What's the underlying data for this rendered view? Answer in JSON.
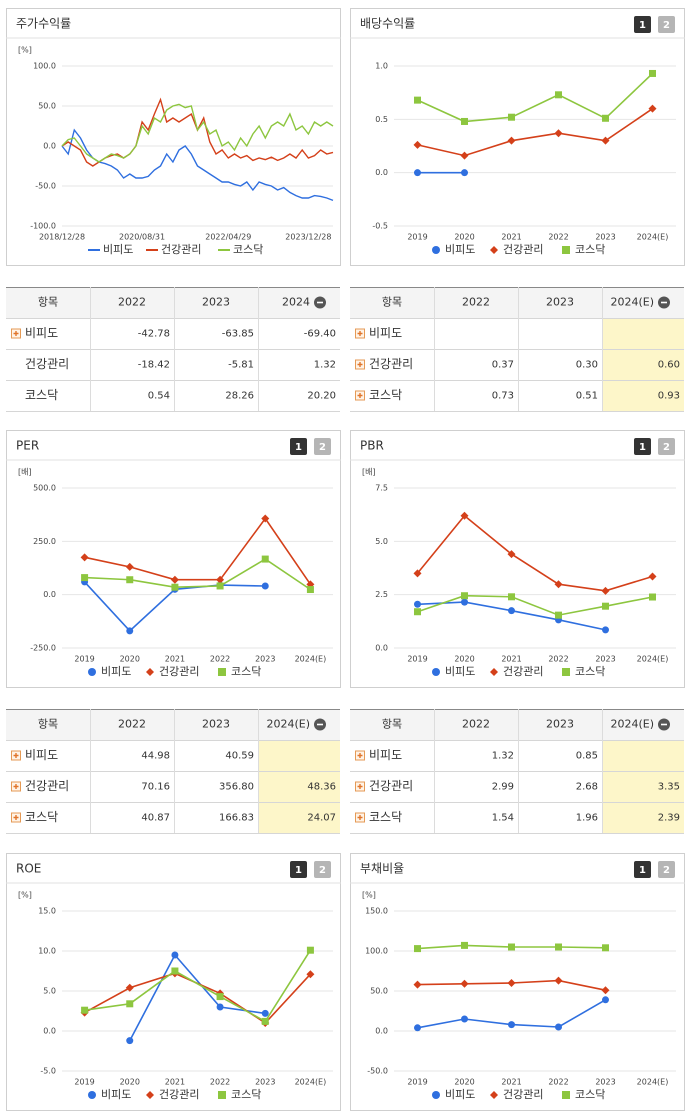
{
  "chart_data": [
    {
      "type": "line",
      "title": "주가수익률",
      "unit": "[%]",
      "markers": false,
      "categories": [
        "2018/12/28",
        null,
        null,
        null,
        null,
        null,
        null,
        null,
        null,
        null,
        null,
        null,
        null,
        "2020/08/31",
        null,
        null,
        null,
        null,
        null,
        null,
        null,
        null,
        null,
        null,
        null,
        null,
        null,
        "2022/04/29",
        null,
        null,
        null,
        null,
        null,
        null,
        null,
        null,
        null,
        null,
        null,
        null,
        "2023/12/28",
        null,
        null,
        null,
        null
      ],
      "ylim": [
        -100,
        100
      ],
      "yticks": [
        {
          "value": -100,
          "label": "-100.0"
        },
        {
          "value": -50,
          "label": "-50.0"
        },
        {
          "value": 0,
          "label": "0.0"
        },
        {
          "value": 50,
          "label": "50.0"
        },
        {
          "value": 100,
          "label": "100.0"
        }
      ],
      "grid": true,
      "series": [
        {
          "name": "비피도",
          "color": "#2f6fdf",
          "values": [
            0,
            -10,
            20,
            10,
            -5,
            -15,
            -20,
            -22,
            -25,
            -30,
            -40,
            -35,
            -40,
            -40,
            -38,
            -30,
            -25,
            -10,
            -20,
            -5,
            0,
            -10,
            -25,
            -30,
            -35,
            -40,
            -45,
            -45,
            -48,
            -50,
            -45,
            -55,
            -45,
            -48,
            -50,
            -55,
            -52,
            -58,
            -62,
            -65,
            -65,
            -62,
            -63,
            -65,
            -68
          ]
        },
        {
          "name": "건강관리",
          "color": "#d4401a",
          "values": [
            0,
            5,
            0,
            -5,
            -20,
            -25,
            -20,
            -15,
            -12,
            -10,
            -15,
            -10,
            0,
            30,
            20,
            40,
            58,
            30,
            35,
            30,
            35,
            40,
            20,
            35,
            5,
            -10,
            -5,
            -15,
            -10,
            -15,
            -12,
            -18,
            -15,
            -17,
            -14,
            -18,
            -15,
            -10,
            -15,
            -5,
            -15,
            -12,
            -5,
            -10,
            -8
          ]
        },
        {
          "name": "코스닥",
          "color": "#8dc63f",
          "values": [
            0,
            8,
            10,
            0,
            -10,
            -15,
            -20,
            -15,
            -10,
            -12,
            -15,
            -10,
            0,
            25,
            15,
            35,
            30,
            45,
            50,
            52,
            48,
            50,
            20,
            30,
            15,
            20,
            0,
            5,
            -5,
            10,
            0,
            15,
            25,
            10,
            25,
            30,
            25,
            40,
            20,
            25,
            15,
            30,
            25,
            30,
            25
          ]
        }
      ]
    },
    {
      "type": "line",
      "title": "배당수익률",
      "buttons": [
        "1",
        "2"
      ],
      "markers": true,
      "categories": [
        "2019",
        "2020",
        "2021",
        "2022",
        "2023",
        "2024(E)"
      ],
      "ylim": [
        -0.5,
        1.0
      ],
      "yticks": [
        -0.5,
        {
          "value": 0,
          "label": "0.0"
        },
        0.5,
        {
          "value": 1.0,
          "label": "1.0"
        }
      ],
      "grid": true,
      "series": [
        {
          "name": "비피도",
          "color": "#2f6fdf",
          "values": [
            0.0,
            0.0,
            null,
            null,
            null,
            null
          ]
        },
        {
          "name": "건강관리",
          "color": "#d4401a",
          "values": [
            0.26,
            0.16,
            0.3,
            0.37,
            0.3,
            0.6
          ]
        },
        {
          "name": "코스닥",
          "color": "#8dc63f",
          "values": [
            0.68,
            0.48,
            0.52,
            0.73,
            0.51,
            0.93
          ]
        }
      ]
    },
    {
      "type": "line",
      "title": "PER",
      "unit": "[배]",
      "buttons": [
        "1",
        "2"
      ],
      "markers": true,
      "categories": [
        "2019",
        "2020",
        "2021",
        "2022",
        "2023",
        "2024(E)"
      ],
      "ylim": [
        -250,
        500
      ],
      "yticks": [
        {
          "value": -250,
          "label": "-250.0"
        },
        {
          "value": 0,
          "label": "0.0"
        },
        {
          "value": 250,
          "label": "250.0"
        },
        {
          "value": 500,
          "label": "500.0"
        }
      ],
      "grid": true,
      "series": [
        {
          "name": "비피도",
          "color": "#2f6fdf",
          "values": [
            60,
            -170,
            25,
            44.98,
            40.59,
            null
          ]
        },
        {
          "name": "건강관리",
          "color": "#d4401a",
          "values": [
            175,
            130,
            70,
            70.16,
            356.8,
            48.36
          ]
        },
        {
          "name": "코스닥",
          "color": "#8dc63f",
          "values": [
            80,
            70,
            35,
            40.87,
            166.83,
            24.07
          ]
        }
      ]
    },
    {
      "type": "line",
      "title": "PBR",
      "unit": "[배]",
      "buttons": [
        "1",
        "2"
      ],
      "markers": true,
      "categories": [
        "2019",
        "2020",
        "2021",
        "2022",
        "2023",
        "2024(E)"
      ],
      "ylim": [
        0,
        7.5
      ],
      "yticks": [
        {
          "value": 0,
          "label": "0.0"
        },
        2.5,
        {
          "value": 5,
          "label": "5.0"
        },
        7.5
      ],
      "grid": true,
      "series": [
        {
          "name": "비피도",
          "color": "#2f6fdf",
          "values": [
            2.05,
            2.15,
            1.75,
            1.32,
            0.85,
            null
          ]
        },
        {
          "name": "건강관리",
          "color": "#d4401a",
          "values": [
            3.5,
            6.2,
            4.4,
            2.99,
            2.68,
            3.35
          ]
        },
        {
          "name": "코스닥",
          "color": "#8dc63f",
          "values": [
            1.7,
            2.45,
            2.4,
            1.54,
            1.96,
            2.39
          ]
        }
      ]
    },
    {
      "type": "line",
      "title": "ROE",
      "unit": "[%]",
      "buttons": [
        "1",
        "2"
      ],
      "markers": true,
      "categories": [
        "2019",
        "2020",
        "2021",
        "2022",
        "2023",
        "2024(E)"
      ],
      "ylim": [
        -5,
        15
      ],
      "yticks": [
        {
          "value": -5,
          "label": "-5.0"
        },
        {
          "value": 0,
          "label": "0.0"
        },
        {
          "value": 5,
          "label": "5.0"
        },
        {
          "value": 10,
          "label": "10.0"
        },
        {
          "value": 15,
          "label": "15.0"
        }
      ],
      "grid": true,
      "series": [
        {
          "name": "비피도",
          "color": "#2f6fdf",
          "values": [
            null,
            -1.2,
            9.5,
            3.0,
            2.2,
            null
          ]
        },
        {
          "name": "건강관리",
          "color": "#d4401a",
          "values": [
            2.3,
            5.4,
            7.2,
            4.7,
            1.0,
            7.1
          ]
        },
        {
          "name": "코스닥",
          "color": "#8dc63f",
          "values": [
            2.6,
            3.4,
            7.5,
            4.3,
            1.2,
            10.1
          ]
        }
      ]
    },
    {
      "type": "line",
      "title": "부채비율",
      "unit": "[%]",
      "buttons": [
        "1",
        "2"
      ],
      "markers": true,
      "categories": [
        "2019",
        "2020",
        "2021",
        "2022",
        "2023",
        "2024(E)"
      ],
      "ylim": [
        -50,
        150
      ],
      "yticks": [
        {
          "value": -50,
          "label": "-50.0"
        },
        {
          "value": 0,
          "label": "0.0"
        },
        {
          "value": 50,
          "label": "50.0"
        },
        {
          "value": 100,
          "label": "100.0"
        },
        {
          "value": 150,
          "label": "150.0"
        }
      ],
      "grid": true,
      "series": [
        {
          "name": "비피도",
          "color": "#2f6fdf",
          "values": [
            4,
            15,
            8,
            5,
            39,
            null
          ]
        },
        {
          "name": "건강관리",
          "color": "#d4401a",
          "values": [
            58,
            59,
            60,
            63,
            51,
            null
          ]
        },
        {
          "name": "코스닥",
          "color": "#8dc63f",
          "values": [
            103,
            107,
            105,
            105,
            104,
            null
          ]
        }
      ]
    }
  ],
  "tables": [
    {
      "header": [
        "항목",
        "2022",
        "2023",
        "2024"
      ],
      "rows": [
        [
          "비피도",
          "-42.78",
          "-63.85",
          "-69.40"
        ],
        [
          "건강관리",
          "-18.42",
          "-5.81",
          "1.32"
        ],
        [
          "코스닥",
          "0.54",
          "28.26",
          "20.20"
        ]
      ]
    },
    {
      "header": [
        "항목",
        "2022",
        "2023",
        "2024(E)"
      ],
      "rows": [
        [
          "비피도",
          null,
          null,
          null
        ],
        [
          "건강관리",
          "0.37",
          "0.30",
          "0.60"
        ],
        [
          "코스닥",
          "0.73",
          "0.51",
          "0.93"
        ]
      ]
    },
    {
      "header": [
        "항목",
        "2022",
        "2023",
        "2024(E)"
      ],
      "rows": [
        [
          "비피도",
          "44.98",
          "40.59",
          null
        ],
        [
          "건강관리",
          "70.16",
          "356.80",
          "48.36"
        ],
        [
          "코스닥",
          "40.87",
          "166.83",
          "24.07"
        ]
      ]
    },
    {
      "header": [
        "항목",
        "2022",
        "2023",
        "2024(E)"
      ],
      "rows": [
        [
          "비피도",
          "1.32",
          "0.85",
          null
        ],
        [
          "건강관리",
          "2.99",
          "2.68",
          "3.35"
        ],
        [
          "코스닥",
          "1.54",
          "1.96",
          "2.39"
        ]
      ]
    }
  ]
}
